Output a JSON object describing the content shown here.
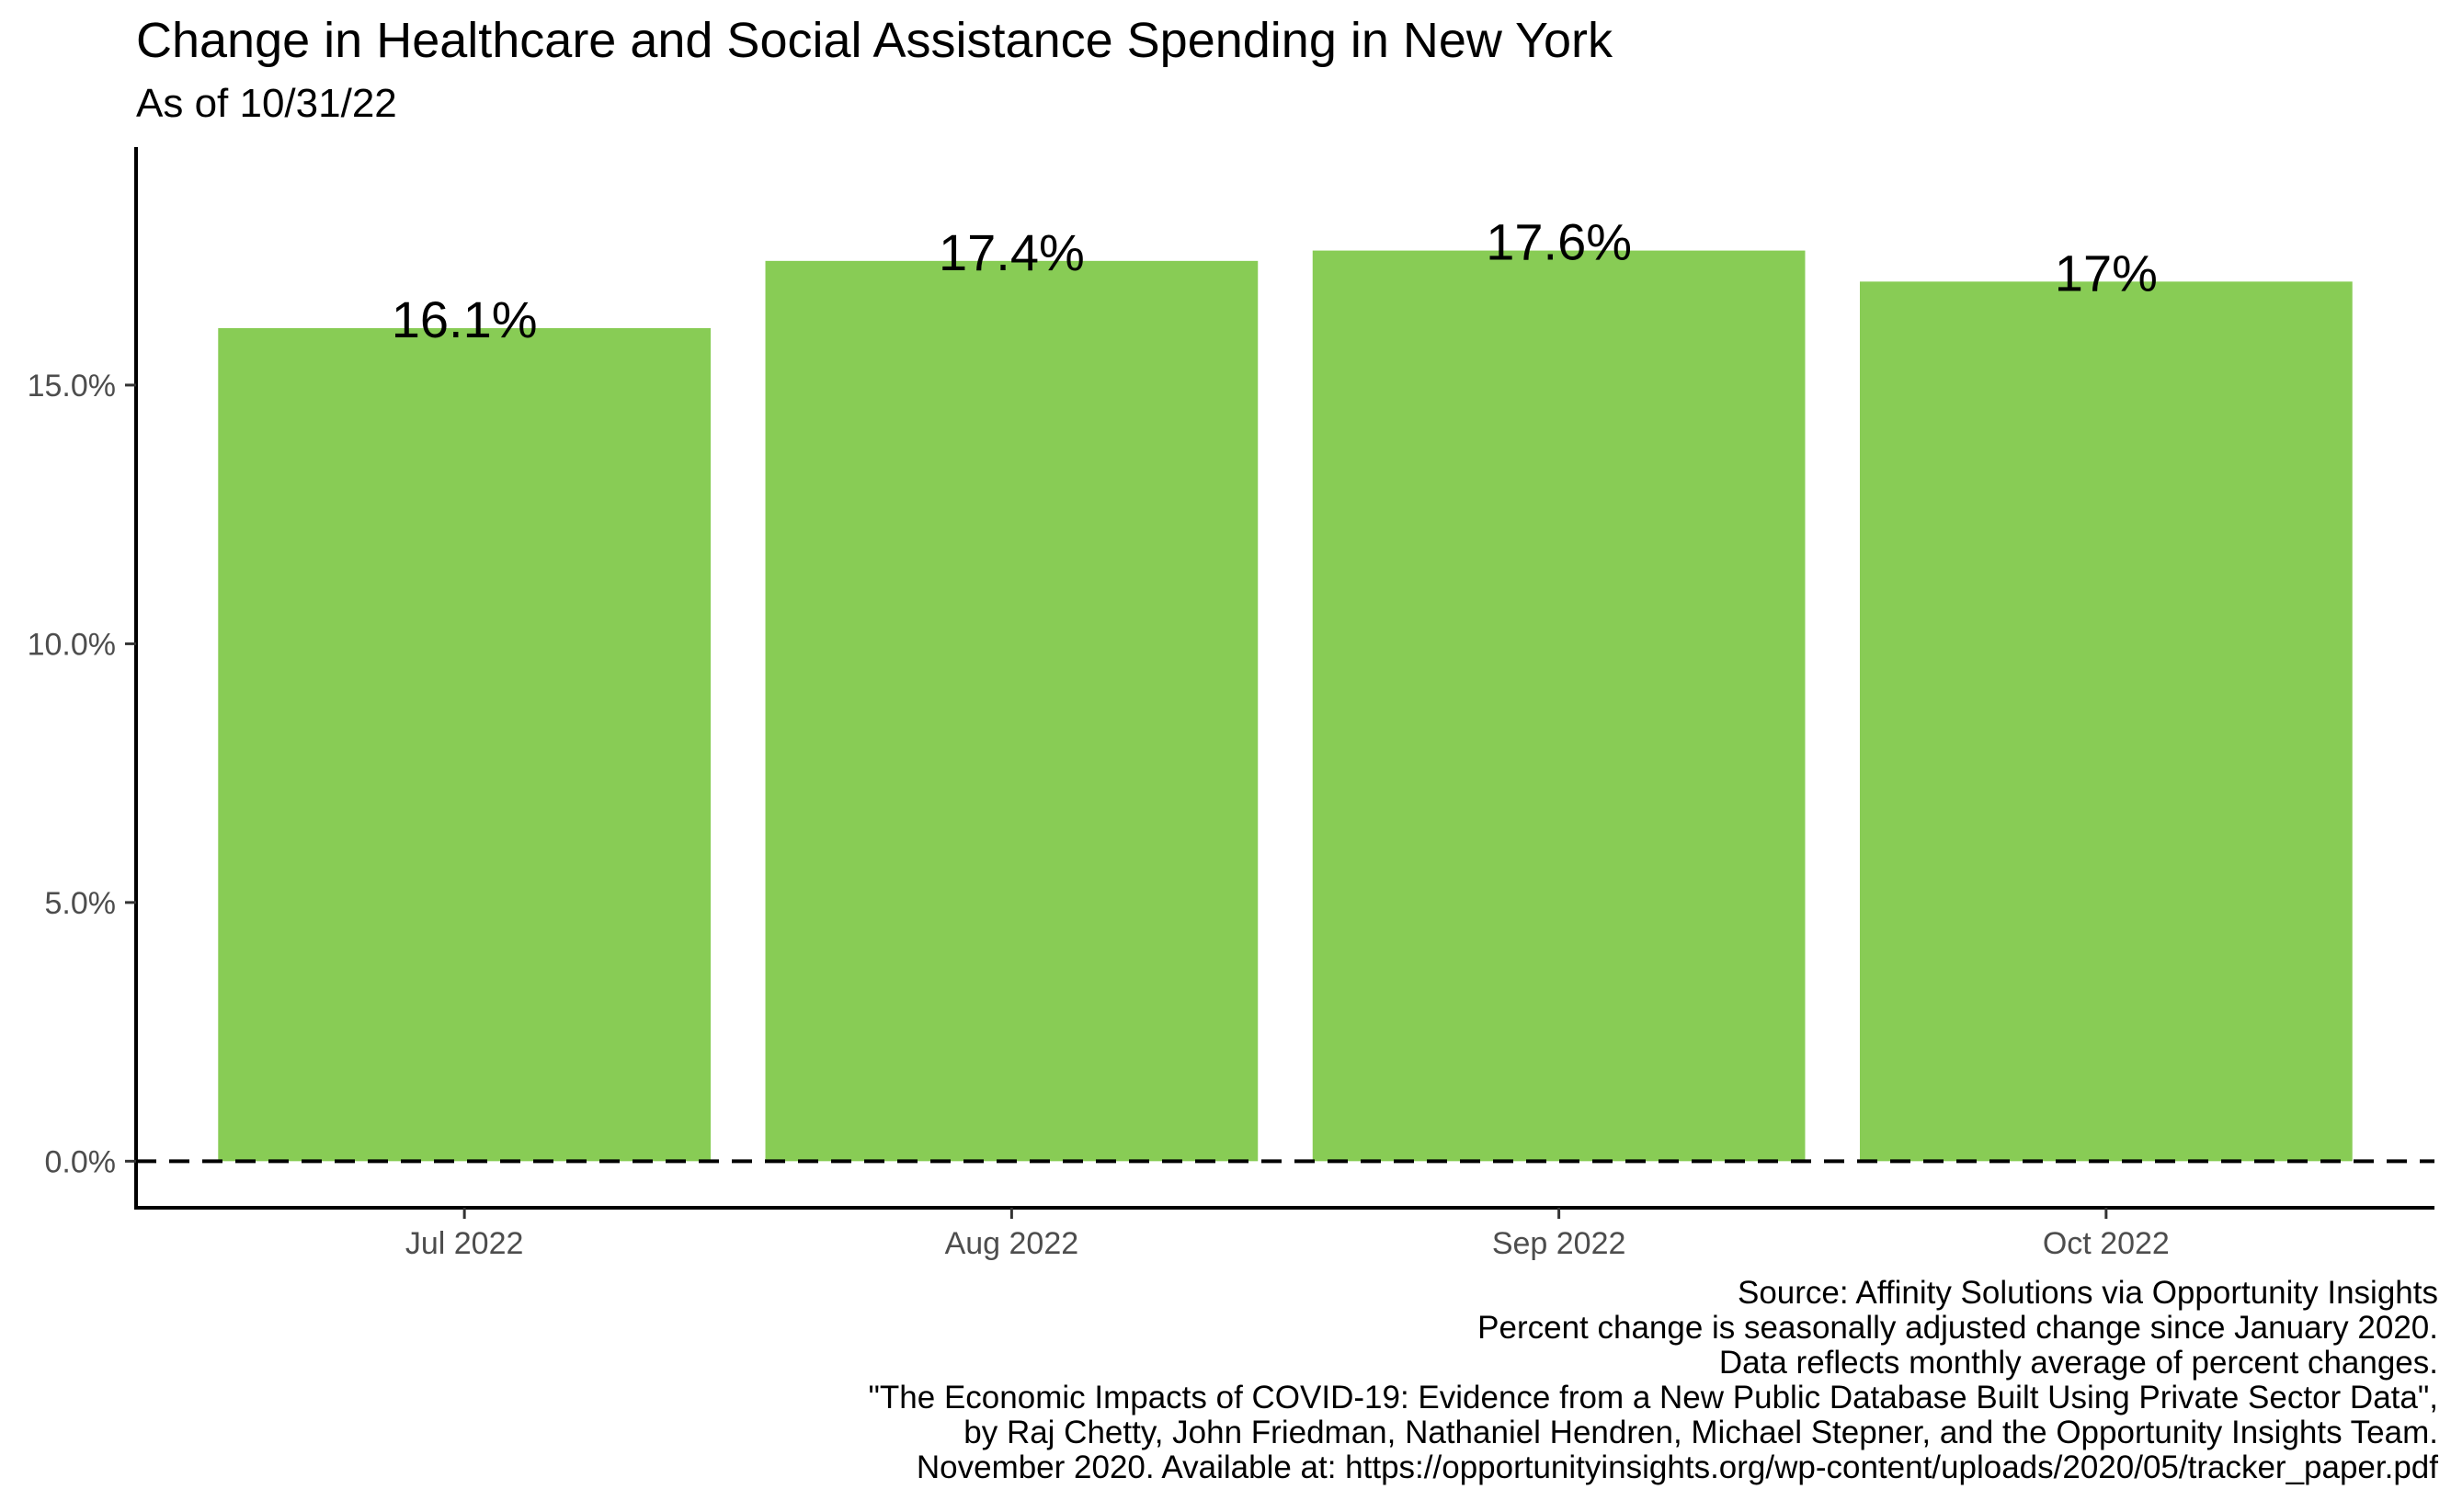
{
  "chart_data": {
    "type": "bar",
    "title": "Change in Healthcare and Social Assistance Spending in New York",
    "subtitle": "As of 10/31/22",
    "categories": [
      "Jul 2022",
      "Aug 2022",
      "Sep 2022",
      "Oct 2022"
    ],
    "values": [
      16.1,
      17.4,
      17.6,
      17.0
    ],
    "data_labels": [
      "16.1%",
      "17.4%",
      "17.6%",
      "17%"
    ],
    "y_ticks": [
      0,
      5,
      10,
      15
    ],
    "y_tick_labels": [
      "0.0%",
      "5.0%",
      "10.0%",
      "15.0%"
    ],
    "ylim": [
      -0.9,
      19.6
    ],
    "reference_line": {
      "y": 0,
      "style": "dashed"
    },
    "bar_color": "#88cc55",
    "xlabel": "",
    "ylabel": "",
    "grid": false,
    "legend": "none",
    "caption": [
      "Source: Affinity Solutions via Opportunity Insights",
      "Percent change is seasonally adjusted change since January 2020.",
      "Data reflects monthly average of percent changes.",
      "\"The Economic Impacts of COVID-19: Evidence from a New Public Database Built Using Private Sector Data\",",
      "by Raj Chetty, John Friedman, Nathaniel Hendren, Michael Stepner, and the Opportunity Insights Team.",
      "November 2020. Available at: https://opportunityinsights.org/wp-content/uploads/2020/05/tracker_paper.pdf"
    ]
  }
}
